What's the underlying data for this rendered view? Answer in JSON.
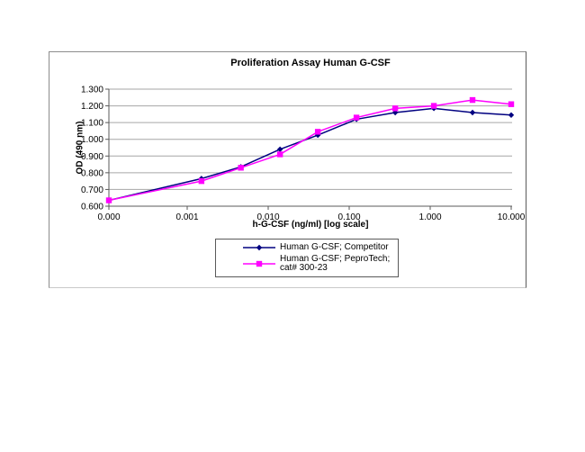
{
  "page": {
    "background": "#FFFFFF"
  },
  "chart": {
    "border_color": "#8C8C8C",
    "grid_color": "#A6A6A6",
    "axis_color": "#595959",
    "plot_background": "#FFFFFF",
    "legend_border_color": "#595959"
  },
  "chart_data": {
    "type": "line",
    "title": "Proliferation Assay Human G-CSF",
    "xlabel": "h-G-CSF (ng/ml) [log scale]",
    "ylabel": "OD (490 nm)",
    "x_scale": "log",
    "x": [
      0,
      0.0015,
      0.0046,
      0.014,
      0.041,
      0.123,
      0.37,
      1.11,
      3.33,
      10
    ],
    "series": [
      {
        "name": "Human G-CSF; Competitor",
        "color": "#000080",
        "marker": "diamond",
        "values": [
          0.635,
          0.765,
          0.835,
          0.94,
          1.025,
          1.12,
          1.16,
          1.185,
          1.16,
          1.145
        ]
      },
      {
        "name": "Human G-CSF; PeproTech; cat# 300-23",
        "color": "#FF00FF",
        "marker": "square",
        "values": [
          0.635,
          0.75,
          0.83,
          0.91,
          1.045,
          1.13,
          1.185,
          1.2,
          1.235,
          1.21
        ]
      }
    ],
    "ylim": [
      0.6,
      1.3
    ],
    "y_tick_values": [
      0.6,
      0.7,
      0.8,
      0.9,
      1.0,
      1.1,
      1.2,
      1.3
    ],
    "y_tick_labels": [
      "0.600",
      "0.700",
      "0.800",
      "0.900",
      "1.000",
      "1.100",
      "1.200",
      "1.300"
    ],
    "x_tick_values": [
      0,
      0.001,
      0.01,
      0.1,
      1,
      10
    ],
    "x_tick_labels": [
      "0.000",
      "0.001",
      "0.010",
      "0.100",
      "1.000",
      "10.000"
    ],
    "grid": "horizontal",
    "legend_position": "below-x-axis"
  }
}
